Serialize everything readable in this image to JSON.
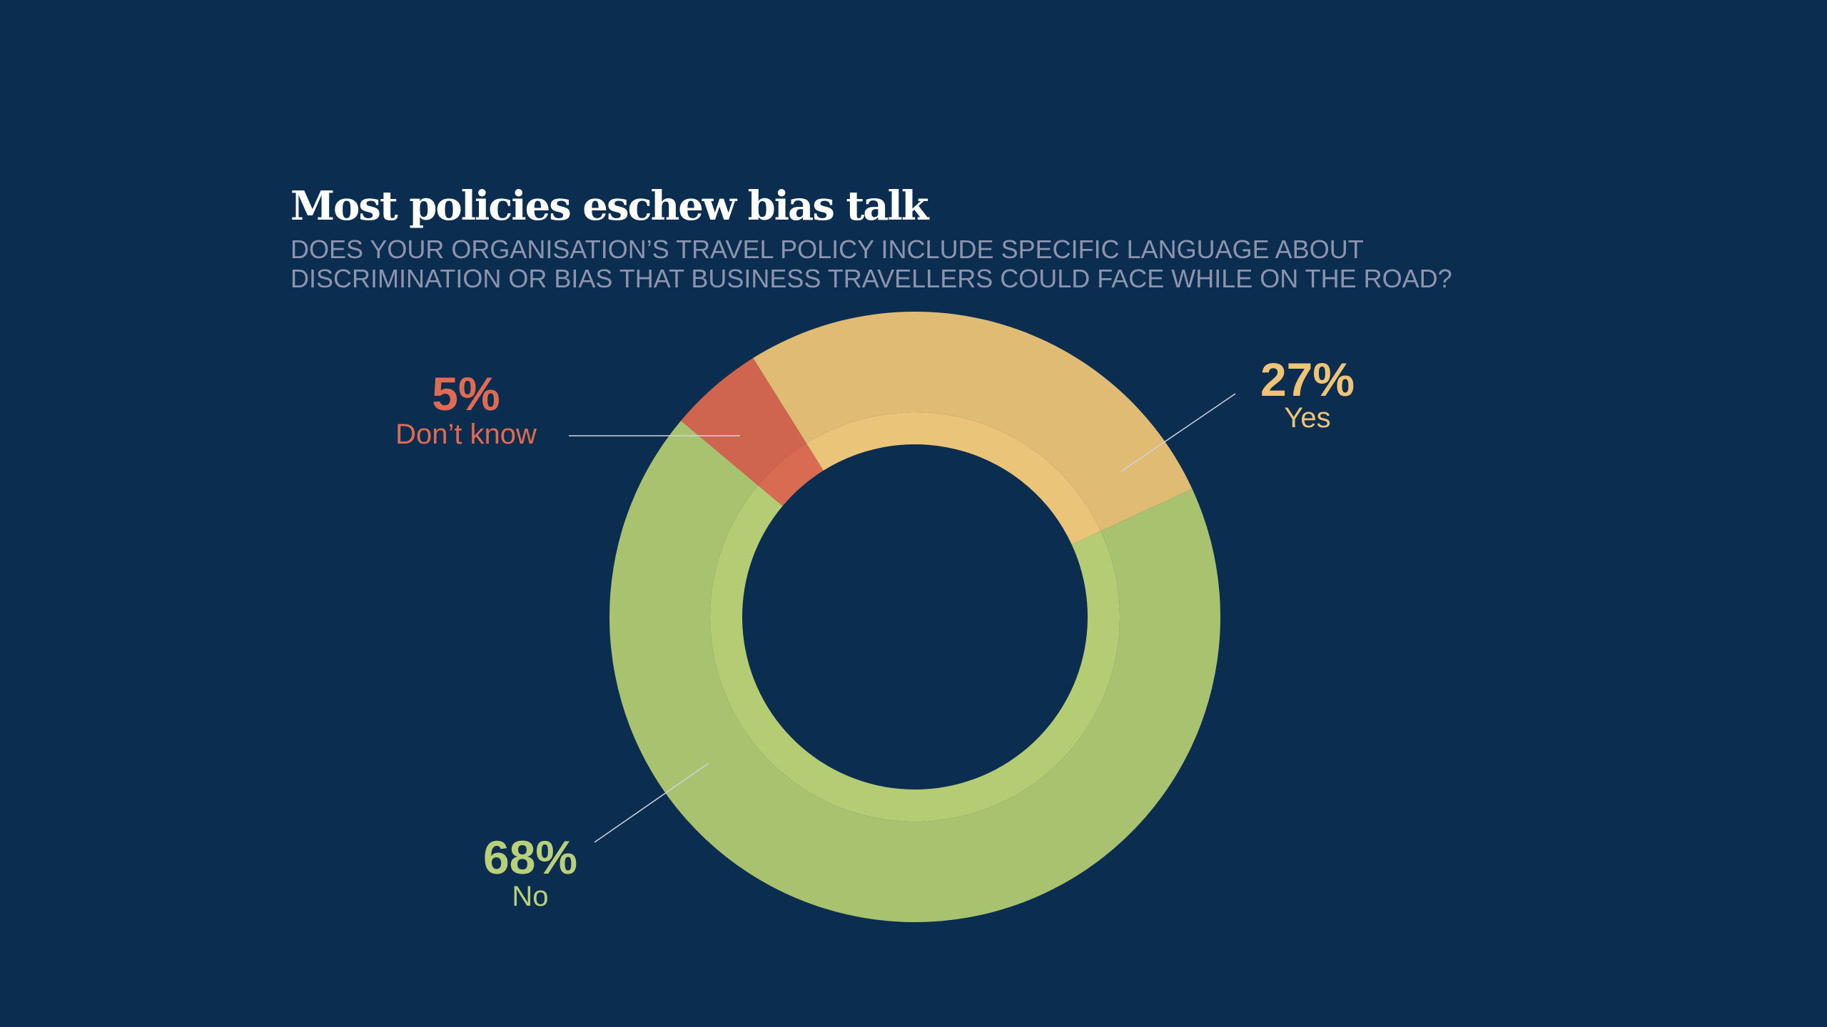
{
  "chart_data": {
    "type": "pie",
    "variant": "donut",
    "title": "Most policies eschew bias talk",
    "subtitle_lines": [
      "DOES YOUR ORGANISATION’S TRAVEL POLICY INCLUDE SPECIFIC LANGUAGE ABOUT",
      "DISCRIMINATION OR BIAS THAT BUSINESS TRAVELLERS COULD FACE WHILE ON THE ROAD?"
    ],
    "slices": [
      {
        "key": "yes",
        "label": "Yes",
        "value": 27,
        "value_label": "27%",
        "color": "#dfbb74",
        "inner_color": "#e9c479",
        "text_color": "#f0c477"
      },
      {
        "key": "no",
        "label": "No",
        "value": 68,
        "value_label": "68%",
        "color": "#a9c26f",
        "inner_color": "#b4cc73",
        "text_color": "#b9d07b"
      },
      {
        "key": "dontknow",
        "label": "Don’t know",
        "value": 5,
        "value_label": "5%",
        "color": "#d0654f",
        "inner_color": "#da6b53",
        "text_color": "#e06a52"
      }
    ],
    "background": "#0b2e50"
  }
}
